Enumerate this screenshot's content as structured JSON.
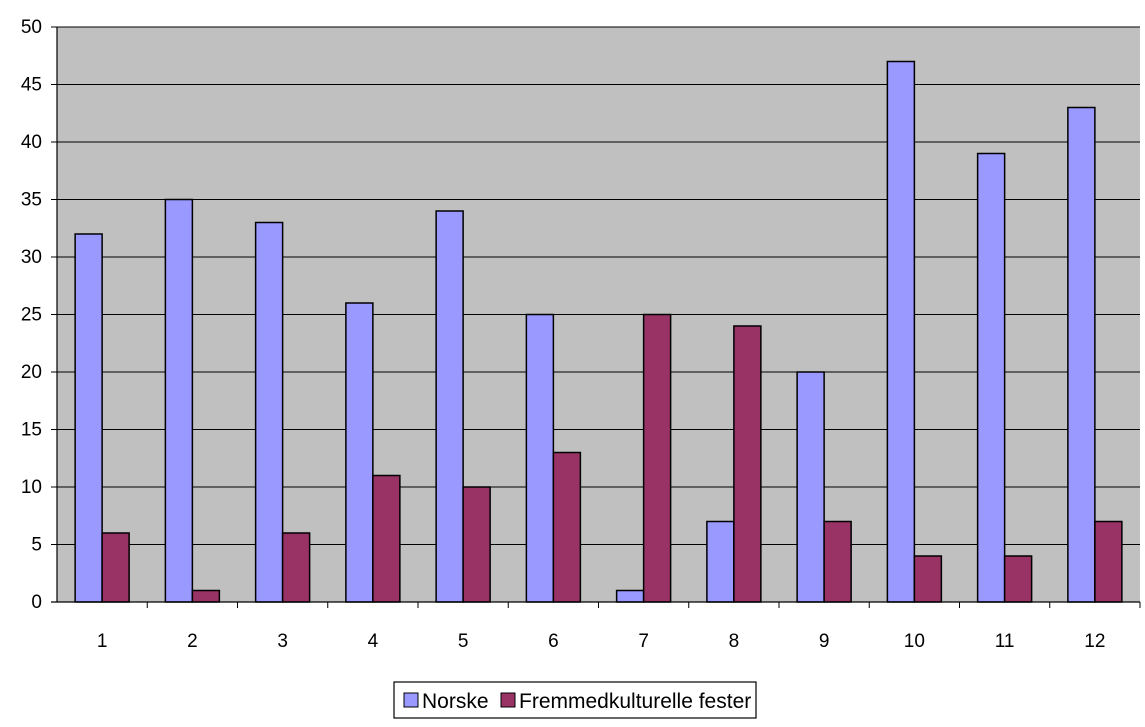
{
  "chart_data": {
    "type": "bar",
    "title": "",
    "xlabel": "",
    "ylabel": "",
    "categories": [
      "1",
      "2",
      "3",
      "4",
      "5",
      "6",
      "7",
      "8",
      "9",
      "10",
      "11",
      "12"
    ],
    "series": [
      {
        "name": "Norske",
        "color": "#9999ff",
        "values": [
          32,
          35,
          33,
          26,
          34,
          25,
          1,
          7,
          20,
          47,
          39,
          43
        ]
      },
      {
        "name": "Fremmedkulturelle fester",
        "color": "#993366",
        "values": [
          6,
          1,
          6,
          11,
          10,
          13,
          25,
          24,
          7,
          4,
          4,
          7
        ]
      }
    ],
    "ylim": [
      0,
      50
    ],
    "yticks": [
      0,
      5,
      10,
      15,
      20,
      25,
      30,
      35,
      40,
      45,
      50
    ],
    "grid": true,
    "plot_background": "#c0c0c0",
    "legend_position": "bottom"
  }
}
